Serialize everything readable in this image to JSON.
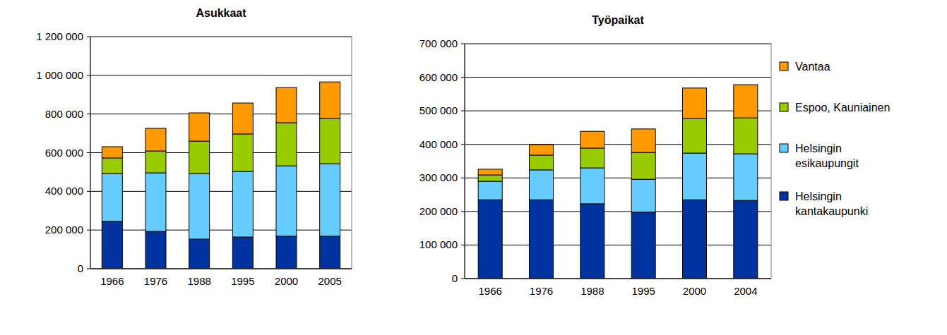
{
  "chart_data": [
    {
      "type": "bar",
      "title": "Asukkaat",
      "stacked": true,
      "grid": true,
      "categories": [
        "1966",
        "1976",
        "1988",
        "1995",
        "2000",
        "2005"
      ],
      "ylim": [
        0,
        1200000
      ],
      "yticks": [
        0,
        {
          "value": 200000,
          "label": "200 000"
        },
        {
          "value": 400000,
          "label": "400 000"
        },
        {
          "value": 600000,
          "label": "600 000"
        },
        {
          "value": 800000,
          "label": "800 000"
        },
        {
          "value": 1000000,
          "label": "1 000 000"
        },
        {
          "value": 1200000,
          "label": "1 200 000"
        }
      ],
      "series": [
        {
          "name": "Helsingin kantakaupunki",
          "color": "#0033a0",
          "values": [
            245000,
            193000,
            153000,
            164000,
            168000,
            168000
          ]
        },
        {
          "name": "Helsingin esikaupungit",
          "color": "#66ccff",
          "values": [
            247000,
            303000,
            339000,
            339000,
            364000,
            375000
          ]
        },
        {
          "name": "Espoo, Kauniainen",
          "color": "#99cc00",
          "values": [
            81000,
            113000,
            168000,
            194000,
            223000,
            234000
          ]
        },
        {
          "name": "Vantaa",
          "color": "#ff9900",
          "values": [
            58000,
            117000,
            146000,
            160000,
            182000,
            189000
          ]
        }
      ]
    },
    {
      "type": "bar",
      "title": "Työpaikat",
      "stacked": true,
      "grid": true,
      "legend": "right",
      "categories": [
        "1966",
        "1976",
        "1988",
        "1995",
        "2000",
        "2004"
      ],
      "ylim": [
        0,
        700000
      ],
      "yticks": [
        0,
        {
          "value": 100000,
          "label": "100 000"
        },
        {
          "value": 200000,
          "label": "200 000"
        },
        {
          "value": 300000,
          "label": "300 000"
        },
        {
          "value": 400000,
          "label": "400 000"
        },
        {
          "value": 500000,
          "label": "500 000"
        },
        {
          "value": 600000,
          "label": "600 000"
        },
        {
          "value": 700000,
          "label": "700 000"
        }
      ],
      "series": [
        {
          "name": "Helsingin kantakaupunki",
          "color": "#0033a0",
          "values": [
            235000,
            235000,
            223000,
            198000,
            235000,
            233000
          ]
        },
        {
          "name": "Helsingin esikaupungit",
          "color": "#66ccff",
          "values": [
            55000,
            89000,
            107000,
            98000,
            139000,
            139000
          ]
        },
        {
          "name": "Espoo, Kauniainen",
          "color": "#99cc00",
          "values": [
            19000,
            44000,
            59000,
            80000,
            103000,
            107000
          ]
        },
        {
          "name": "Vantaa",
          "color": "#ff9900",
          "values": [
            17000,
            31000,
            50000,
            70000,
            91000,
            99000
          ]
        }
      ]
    }
  ]
}
